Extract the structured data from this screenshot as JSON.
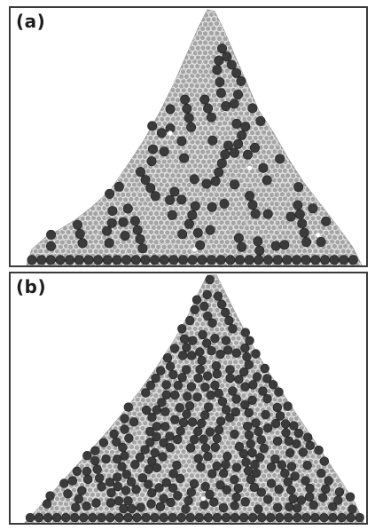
{
  "figure": {
    "panels": [
      {
        "label": "(a)"
      },
      {
        "label": "(b)"
      }
    ],
    "colors": {
      "pile_fill": "#a2a2a2",
      "grain_outline": "#e6e6e6",
      "dark_grain": "#3b3b3b",
      "frame": "#3a3a3a"
    }
  }
}
